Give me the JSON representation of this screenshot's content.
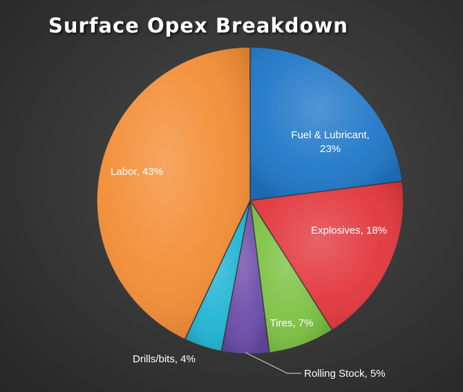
{
  "chart_data": {
    "type": "pie",
    "title": "Surface Opex Breakdown",
    "slices": [
      {
        "label": "Fuel & Lubricant, 23%",
        "lines": [
          "Fuel & Lubricant,",
          "23%"
        ],
        "value": 23,
        "color": "#1f77c8"
      },
      {
        "label": "Explosives, 18%",
        "lines": [
          "Explosives, 18%"
        ],
        "value": 18,
        "color": "#e2363c"
      },
      {
        "label": "Tires, 7%",
        "lines": [
          "Tires, 7%"
        ],
        "value": 7,
        "color": "#7cc142"
      },
      {
        "label": "Rolling Stock, 5%",
        "lines": [
          "Rolling Stock, 5%"
        ],
        "value": 5,
        "color": "#6a4ba8"
      },
      {
        "label": "Drills/bits, 4%",
        "lines": [
          "Drills/bits, 4%"
        ],
        "value": 4,
        "color": "#20b5d4"
      },
      {
        "label": "Labor, 43%",
        "lines": [
          "Labor, 43%"
        ],
        "value": 43,
        "color": "#f38d34"
      }
    ]
  }
}
